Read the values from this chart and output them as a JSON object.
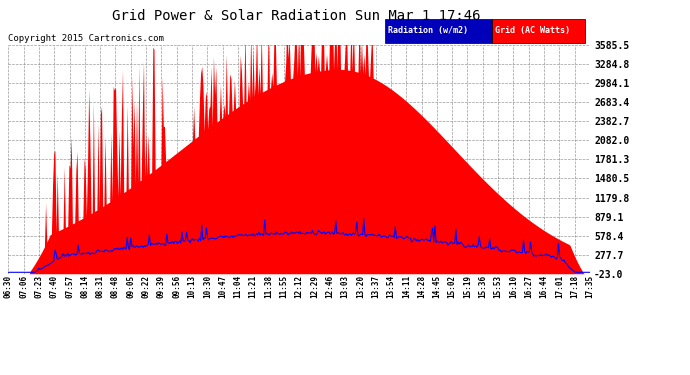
{
  "title": "Grid Power & Solar Radiation Sun Mar 1 17:46",
  "copyright": "Copyright 2015 Cartronics.com",
  "yticks": [
    3585.5,
    3284.8,
    2984.1,
    2683.4,
    2382.7,
    2082.0,
    1781.3,
    1480.5,
    1179.8,
    879.1,
    578.4,
    277.7,
    -23.0
  ],
  "ymin": -23.0,
  "ymax": 3585.5,
  "legend_radiation_label": "Radiation (w/m2)",
  "legend_grid_label": "Grid (AC Watts)",
  "radiation_color": "#0000ff",
  "radiation_bg_color": "#0000aa",
  "grid_color": "#ff0000",
  "background_color": "#ffffff",
  "plot_bg_color": "#ffffff",
  "xtick_labels": [
    "06:30",
    "07:06",
    "07:23",
    "07:40",
    "07:57",
    "08:14",
    "08:31",
    "08:48",
    "09:05",
    "09:22",
    "09:39",
    "09:56",
    "10:13",
    "10:30",
    "10:47",
    "11:04",
    "11:21",
    "11:38",
    "11:55",
    "12:12",
    "12:29",
    "12:46",
    "13:03",
    "13:20",
    "13:37",
    "13:54",
    "14:11",
    "14:28",
    "14:45",
    "15:02",
    "15:19",
    "15:36",
    "15:53",
    "16:10",
    "16:27",
    "16:44",
    "17:01",
    "17:18",
    "17:35"
  ],
  "n_points": 500,
  "figwidth": 6.9,
  "figheight": 3.75,
  "dpi": 100
}
